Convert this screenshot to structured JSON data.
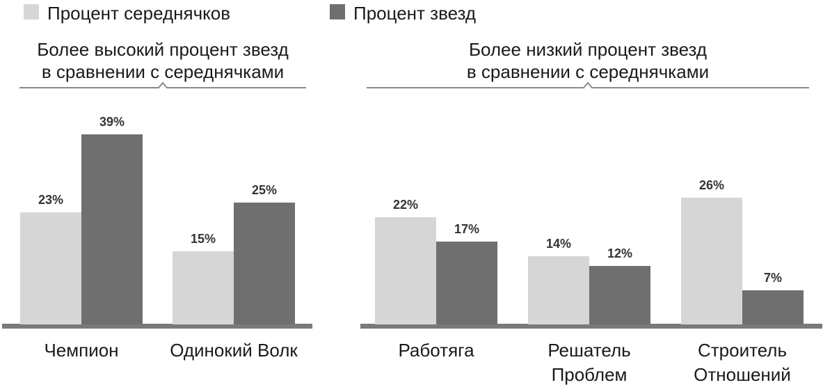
{
  "chart_data": {
    "type": "bar",
    "legend": [
      {
        "name": "Процент середнячков",
        "color": "#d6d6d6"
      },
      {
        "name": "Процент звезд",
        "color": "#6f6f6f"
      }
    ],
    "legend_placement": "top-left",
    "grid": false,
    "ylim": [
      0,
      45
    ],
    "groups": [
      {
        "title_lines": [
          "Более высокий процент звезд",
          "в сравнении с середнячками"
        ],
        "categories": [
          {
            "label_lines": [
              "Чемпион"
            ],
            "values": [
              23,
              39
            ],
            "labels": [
              "23%",
              "39%"
            ]
          },
          {
            "label_lines": [
              "Одинокий Волк"
            ],
            "values": [
              15,
              25
            ],
            "labels": [
              "15%",
              "25%"
            ]
          }
        ]
      },
      {
        "title_lines": [
          "Более низкий процент звезд",
          "в сравнении с середнячками"
        ],
        "categories": [
          {
            "label_lines": [
              "Работяга"
            ],
            "values": [
              22,
              17
            ],
            "labels": [
              "22%",
              "17%"
            ]
          },
          {
            "label_lines": [
              "Решатель",
              "Проблем"
            ],
            "values": [
              14,
              12
            ],
            "labels": [
              "14%",
              "12%"
            ]
          },
          {
            "label_lines": [
              "Строитель",
              "Отношений"
            ],
            "values": [
              26,
              7
            ],
            "labels": [
              "26%",
              "7%"
            ]
          }
        ]
      }
    ]
  }
}
